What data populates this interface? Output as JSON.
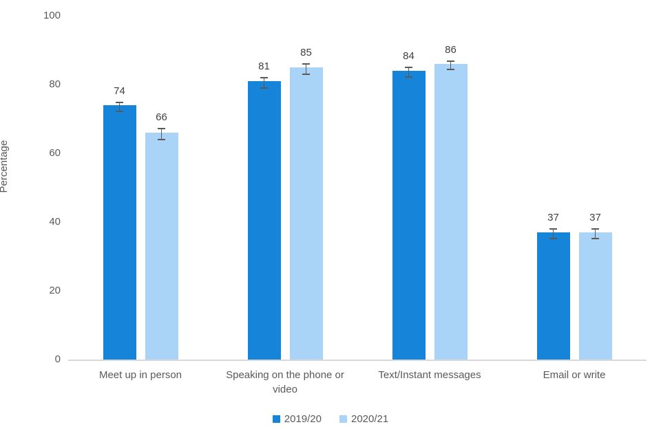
{
  "chart_data": {
    "type": "bar",
    "title": "",
    "ylabel": "Percentage",
    "xlabel": "",
    "categories": [
      "Meet up in person",
      "Speaking on the phone or video",
      "Text/Instant messages",
      "Email or write"
    ],
    "series": [
      {
        "name": "2019/20",
        "color": "#1584d9",
        "values": [
          74,
          81,
          84,
          37
        ],
        "errors": [
          1.1,
          1.3,
          1.2,
          1.2
        ]
      },
      {
        "name": "2020/21",
        "color": "#a9d3f7",
        "values": [
          66,
          85,
          86,
          37
        ],
        "errors": [
          1.4,
          1.3,
          1.0,
          1.2
        ]
      }
    ],
    "data_labels": [
      [
        "74",
        "81",
        "84",
        "37"
      ],
      [
        "66",
        "85",
        "86",
        "37"
      ]
    ],
    "ylim": [
      0,
      100
    ],
    "yticks": [
      0,
      20,
      40,
      60,
      80,
      100
    ],
    "grid": false,
    "legend_position": "bottom",
    "colors": {
      "axis_line": "#d9d9d9",
      "tick_text": "#595959",
      "value_text": "#404040",
      "error_bar": "#595959",
      "background": "#ffffff"
    }
  }
}
